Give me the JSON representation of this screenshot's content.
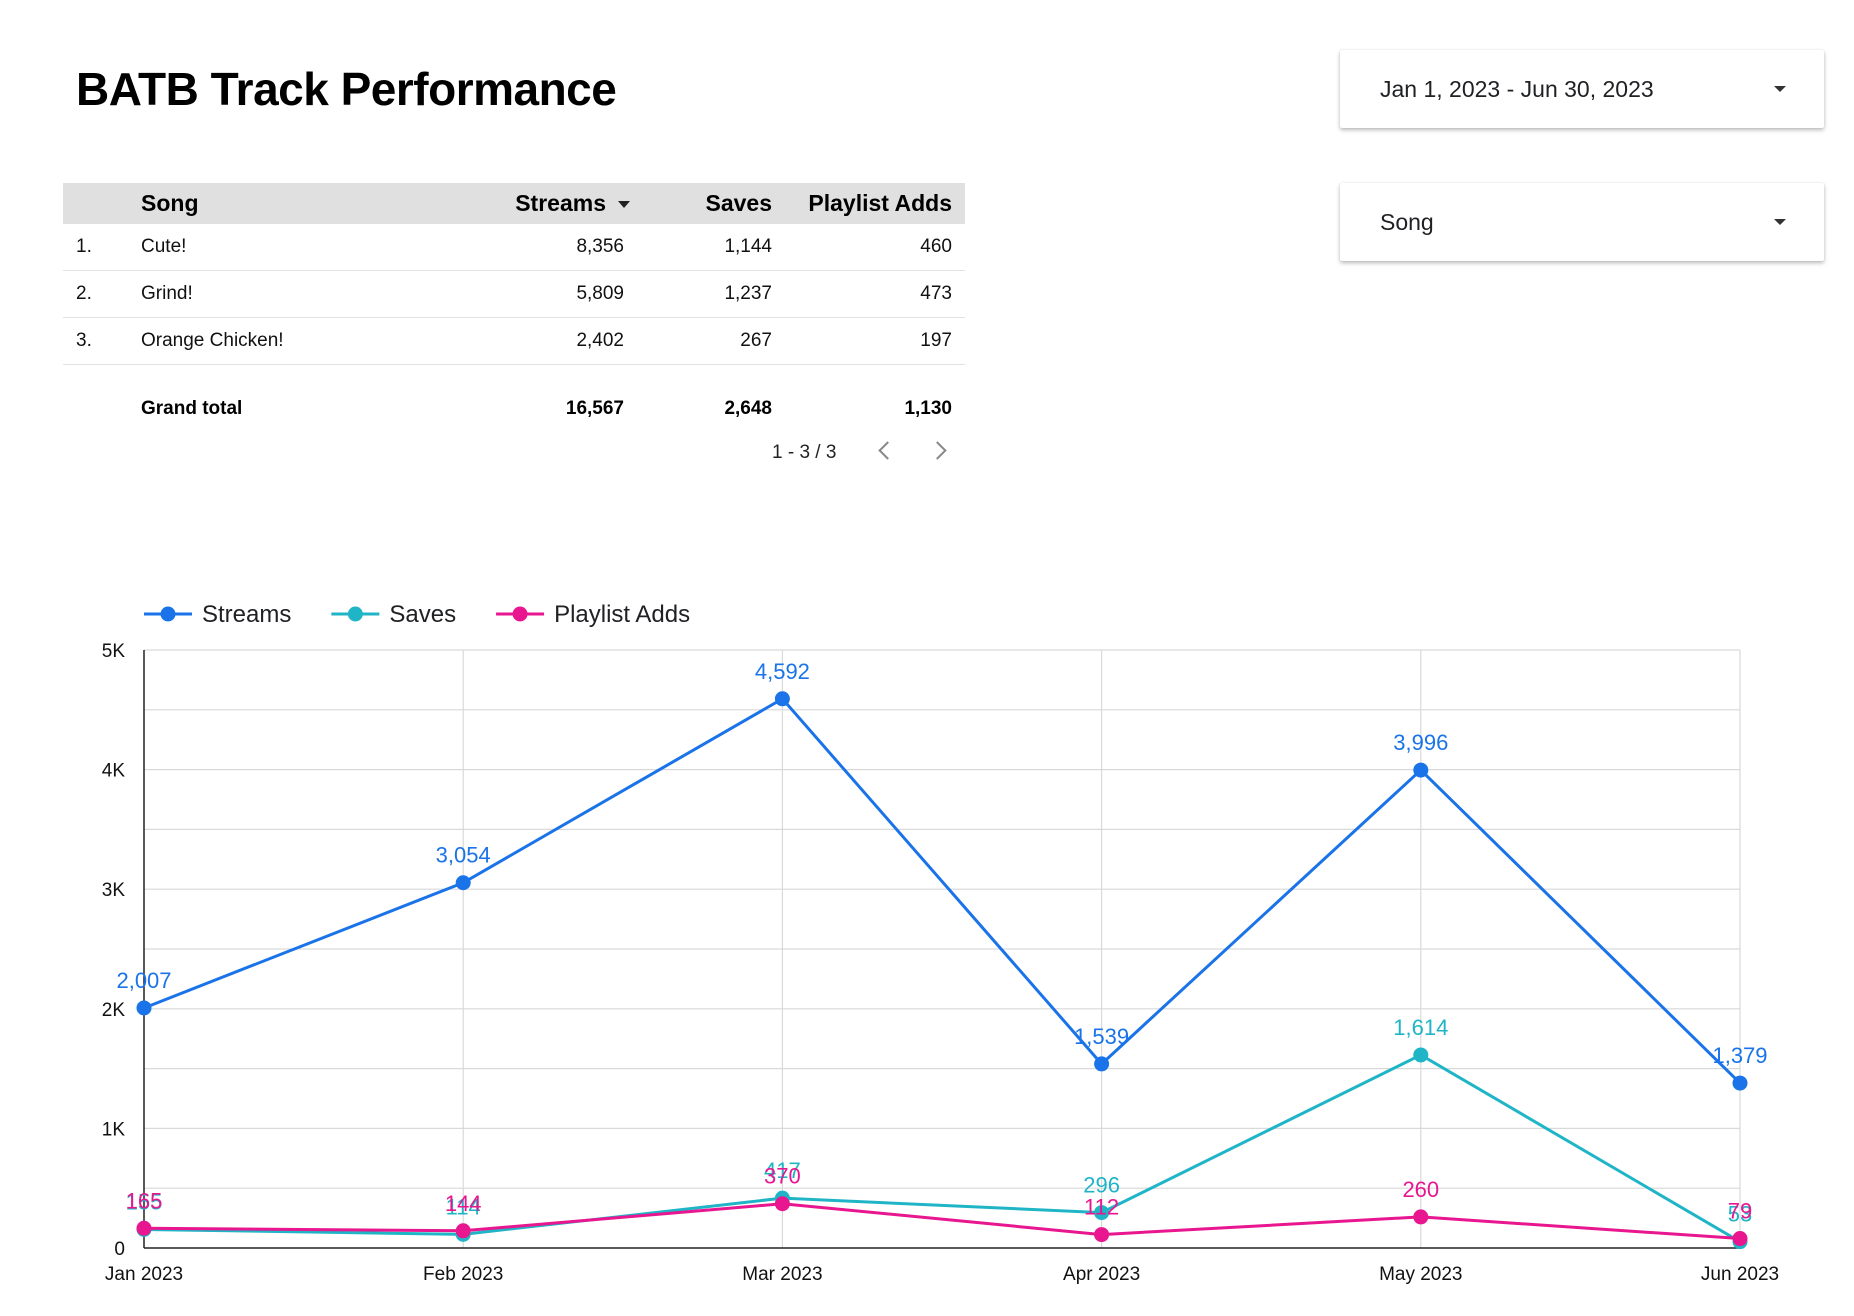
{
  "page_title": "BATB Track Performance",
  "date_range_control": {
    "value": "Jan 1, 2023 - Jun 30, 2023"
  },
  "song_control": {
    "value": "Song"
  },
  "table": {
    "headers": {
      "song": "Song",
      "streams": "Streams",
      "saves": "Saves",
      "playlist_adds": "Playlist Adds"
    },
    "rows": [
      {
        "num": "1.",
        "song": "Cute!",
        "streams": "8,356",
        "saves": "1,144",
        "playlist_adds": "460"
      },
      {
        "num": "2.",
        "song": "Grind!",
        "streams": "5,809",
        "saves": "1,237",
        "playlist_adds": "473"
      },
      {
        "num": "3.",
        "song": "Orange Chicken!",
        "streams": "2,402",
        "saves": "267",
        "playlist_adds": "197"
      }
    ],
    "total": {
      "label": "Grand total",
      "streams": "16,567",
      "saves": "2,648",
      "playlist_adds": "1,130"
    },
    "pagination": "1 - 3 / 3"
  },
  "colors": {
    "streams": "#1a73e8",
    "saves": "#1fb5c6",
    "playlist_adds": "#e8168f",
    "grid": "#d9d9d9"
  },
  "chart_data": {
    "type": "line",
    "categories": [
      "Jan 2023",
      "Feb 2023",
      "Mar 2023",
      "Apr 2023",
      "May 2023",
      "Jun 2023"
    ],
    "series": [
      {
        "name": "Streams",
        "values": [
          2007,
          3054,
          4592,
          1539,
          3996,
          1379
        ],
        "labels": [
          "2,007",
          "3,054",
          "4,592",
          "1,539",
          "3,996",
          "1,379"
        ]
      },
      {
        "name": "Saves",
        "values": [
          155,
          114,
          417,
          296,
          1614,
          53
        ],
        "labels": [
          "155",
          "114",
          "417",
          "296",
          "1,614",
          "53"
        ]
      },
      {
        "name": "Playlist Adds",
        "values": [
          165,
          144,
          370,
          112,
          260,
          79
        ],
        "labels": [
          "165",
          "144",
          "370",
          "112",
          "260",
          "79"
        ]
      }
    ],
    "ylim": [
      0,
      5000
    ],
    "yticks": [
      0,
      1000,
      2000,
      3000,
      4000,
      5000
    ],
    "ytick_labels": [
      "0",
      "1K",
      "2K",
      "3K",
      "4K",
      "5K"
    ],
    "legend_position": "top-left",
    "grid": true
  }
}
